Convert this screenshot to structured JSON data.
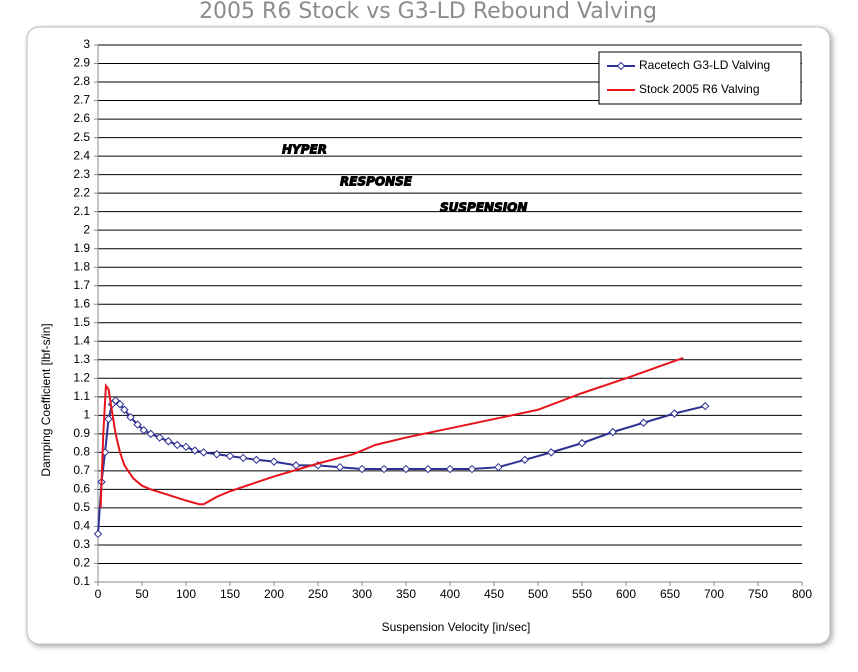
{
  "chart_data": {
    "type": "line",
    "title": "2005 R6 Stock vs G3-LD Rebound Valving",
    "x_label": "Suspension Velocity [in/sec]",
    "y_label": "Damping Coefficient  [lbf-s/in]",
    "logo": [
      "HYPER",
      "RESPONSE",
      "SUSPENSION"
    ],
    "xlim": [
      0,
      800
    ],
    "xticks": [
      0,
      50,
      100,
      150,
      200,
      250,
      300,
      350,
      400,
      450,
      500,
      550,
      600,
      650,
      700,
      750,
      800
    ],
    "ylim": [
      0.1,
      3
    ],
    "yticks": [
      0.1,
      0.2,
      0.3,
      0.4,
      0.5,
      0.6,
      0.7,
      0.8,
      0.9,
      1,
      1.1,
      1.2,
      1.3,
      1.4,
      1.5,
      1.6,
      1.7,
      1.8,
      1.9,
      2,
      2.1,
      2.2,
      2.3,
      2.4,
      2.5,
      2.6,
      2.7,
      2.8,
      2.9,
      3
    ],
    "grid": true,
    "legend": "upper right",
    "series": [
      {
        "name": "Racetech G3-LD Valving",
        "color": "#2e3192",
        "marker": "diamond",
        "x": [
          0,
          4,
          8,
          12,
          16,
          20,
          25,
          30,
          37,
          45,
          52,
          60,
          70,
          80,
          90,
          100,
          110,
          120,
          135,
          150,
          165,
          180,
          200,
          225,
          250,
          275,
          300,
          325,
          350,
          375,
          400,
          425,
          455,
          485,
          515,
          550,
          585,
          620,
          655,
          690
        ],
        "values": [
          0.36,
          0.64,
          0.8,
          0.98,
          1.06,
          1.08,
          1.06,
          1.03,
          0.99,
          0.95,
          0.92,
          0.9,
          0.88,
          0.86,
          0.84,
          0.83,
          0.81,
          0.8,
          0.79,
          0.78,
          0.77,
          0.76,
          0.75,
          0.73,
          0.73,
          0.72,
          0.71,
          0.71,
          0.71,
          0.71,
          0.71,
          0.71,
          0.72,
          0.76,
          0.8,
          0.85,
          0.91,
          0.96,
          1.01,
          1.05
        ]
      },
      {
        "name": "Stock 2005 R6 Valving",
        "color": "#e8141c",
        "marker": null,
        "x": [
          3,
          6,
          9,
          12,
          15,
          20,
          25,
          30,
          40,
          50,
          60,
          80,
          100,
          115,
          120,
          135,
          150,
          200,
          250,
          290,
          300,
          315,
          350,
          400,
          450,
          500,
          550,
          600,
          665
        ],
        "values": [
          0.5,
          0.9,
          1.16,
          1.14,
          1.05,
          0.9,
          0.8,
          0.73,
          0.66,
          0.62,
          0.6,
          0.57,
          0.54,
          0.52,
          0.52,
          0.56,
          0.59,
          0.67,
          0.74,
          0.79,
          0.81,
          0.84,
          0.88,
          0.93,
          0.98,
          1.03,
          1.12,
          1.2,
          1.31
        ]
      }
    ]
  }
}
